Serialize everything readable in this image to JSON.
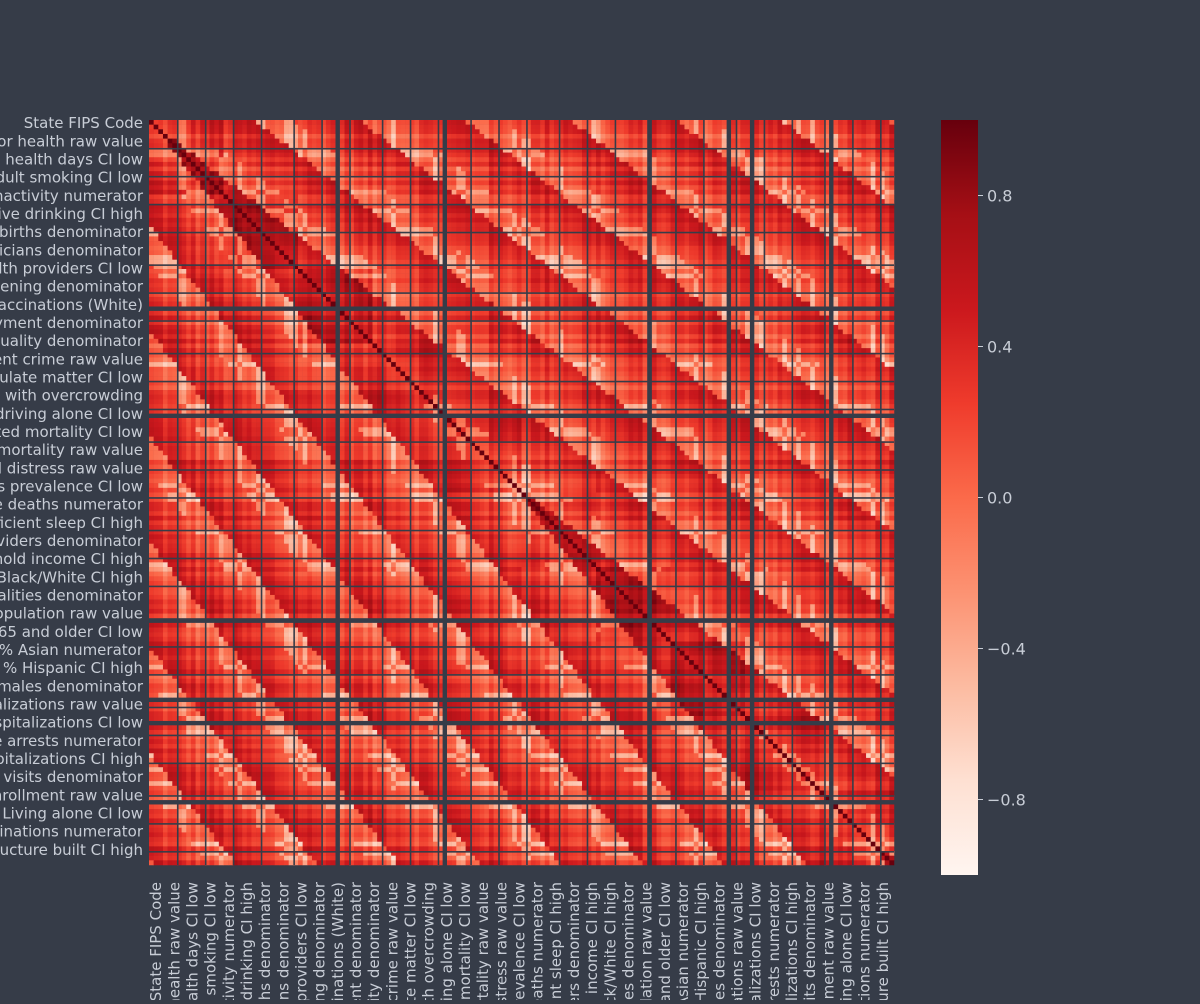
{
  "chart_data": {
    "type": "heatmap",
    "title": "",
    "xlabel": "",
    "ylabel": "",
    "colormap": "Reds",
    "vmin": -1.0,
    "vmax": 1.0,
    "colorbar_ticks": [
      {
        "value": 0.8,
        "label": "0.8"
      },
      {
        "value": 0.4,
        "label": "0.4"
      },
      {
        "value": 0.0,
        "label": "0.0"
      },
      {
        "value": -0.4,
        "label": "−0.4"
      },
      {
        "value": -0.8,
        "label": "−0.8"
      }
    ],
    "tick_labels": [
      "State FIPS Code",
      "Fair or poor health raw value",
      "Poor physical health days CI low",
      "Adult smoking CI low",
      "Physical inactivity numerator",
      "Excessive drinking CI high",
      "Teen births denominator",
      "Primary care physicians denominator",
      "Mental health providers CI low",
      "Mammography screening denominator",
      "Flu vaccinations (White)",
      "Unemployment denominator",
      "Air pollution - particulate quality denominator",
      "Violent crime raw value",
      "Air pollution - particulate matter CI low",
      "Severe housing problems with overcrowding",
      "Long commute - driving alone CI low",
      "Premature age-adjusted mortality CI low",
      "Child mortality raw value",
      "Frequent mental distress raw value",
      "Diabetes prevalence CI low",
      "Drug overdose deaths numerator",
      "Insufficient sleep CI high",
      "Other primary care providers denominator",
      "Median household income CI high",
      "Residential segregation - Black/White CI high",
      "Motor vehicle crash fatalities denominator",
      "Rural population raw value",
      "% 65 and older CI low",
      "% Asian numerator",
      "% Hispanic CI high",
      "% Females denominator",
      "Preventable hospitalizations raw value",
      "Preventable hospitalizations CI low",
      "Juvenile arrests numerator",
      "Preventable hospitalizations CI high",
      "Dentist visits denominator",
      "School enrollment raw value",
      "Living alone CI low",
      "Flu vaccinations numerator",
      "Infrastructure built CI high"
    ],
    "correlation_summary": {
      "diagonal": 1.0,
      "typical_off_diagonal_range": [
        -0.2,
        0.6
      ],
      "dominant_sign": "positive",
      "missing_rows_and_columns": "several blank (NaN) stripes"
    }
  }
}
